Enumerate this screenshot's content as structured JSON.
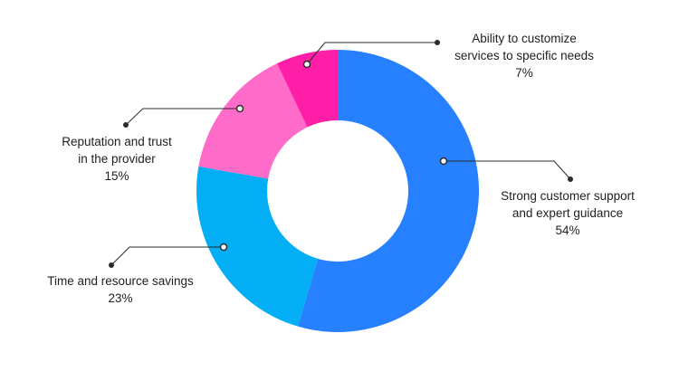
{
  "chart_data": {
    "type": "pie",
    "variant": "donut",
    "title": "",
    "legend": "none",
    "slices": [
      {
        "label_lines": [
          "Strong customer support",
          "and expert guidance"
        ],
        "value": 54,
        "value_label": "54%",
        "color": "#2680FF"
      },
      {
        "label_lines": [
          "Time and resource savings"
        ],
        "value": 23,
        "value_label": "23%",
        "color": "#04AEF5"
      },
      {
        "label_lines": [
          "Reputation and trust",
          "in the provider"
        ],
        "value": 15,
        "value_label": "15%",
        "color": "#FF6BC9"
      },
      {
        "label_lines": [
          "Ability to customize",
          "services to specific needs"
        ],
        "value": 7,
        "value_label": "7%",
        "color": "#FF1EA8"
      }
    ],
    "start_angle_deg": 0,
    "direction": "clockwise",
    "colors": {
      "background": "#FFFFFF",
      "text": "#1F1F1F",
      "leader": "#2B2B2B"
    }
  }
}
